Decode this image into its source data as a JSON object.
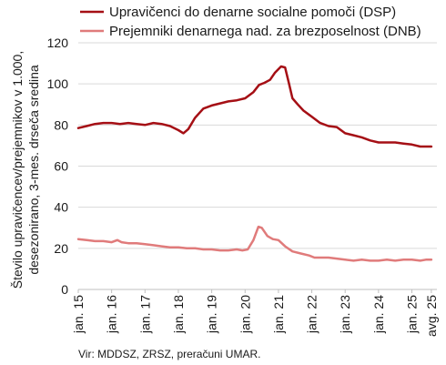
{
  "source": "Vir: MDDSZ, ZRSZ, preračuni UMAR.",
  "chart_data": {
    "type": "line",
    "ylabel_lines": [
      "Število upravičencev/prejemnikov v 1.000,",
      "desezonirano, 3-mes. drseča sredina"
    ],
    "ylim": [
      0,
      120
    ],
    "yticks": [
      0,
      20,
      40,
      60,
      80,
      100,
      120
    ],
    "xlim": [
      2015.0,
      2025.75
    ],
    "x_tick_labels": [
      {
        "x": 2015,
        "label": "jan. 15"
      },
      {
        "x": 2016,
        "label": "jan. 16"
      },
      {
        "x": 2017,
        "label": "jan. 17"
      },
      {
        "x": 2018,
        "label": "jan. 18"
      },
      {
        "x": 2019,
        "label": "jan. 19"
      },
      {
        "x": 2020,
        "label": "jan. 20"
      },
      {
        "x": 2021,
        "label": "jan. 21"
      },
      {
        "x": 2022,
        "label": "jan. 22"
      },
      {
        "x": 2023,
        "label": "jan. 23"
      },
      {
        "x": 2024,
        "label": "jan. 24"
      },
      {
        "x": 2025,
        "label": "jan. 25"
      },
      {
        "x": 2025.583,
        "label": "avg. 25"
      }
    ],
    "grid": "horizontal",
    "legend_position": "top",
    "series": [
      {
        "name": "Upravičenci do denarne socialne pomoči (DSP)",
        "color": "#a50f15",
        "points": [
          [
            2015.0,
            78.5
          ],
          [
            2015.25,
            79.5
          ],
          [
            2015.5,
            80.5
          ],
          [
            2015.75,
            81.0
          ],
          [
            2016.0,
            81.0
          ],
          [
            2016.25,
            80.5
          ],
          [
            2016.5,
            81.0
          ],
          [
            2016.75,
            80.5
          ],
          [
            2017.0,
            80.0
          ],
          [
            2017.25,
            81.0
          ],
          [
            2017.5,
            80.5
          ],
          [
            2017.75,
            79.5
          ],
          [
            2018.0,
            77.5
          ],
          [
            2018.15,
            76.0
          ],
          [
            2018.3,
            78.0
          ],
          [
            2018.5,
            83.5
          ],
          [
            2018.75,
            88.0
          ],
          [
            2019.0,
            89.5
          ],
          [
            2019.25,
            90.5
          ],
          [
            2019.5,
            91.5
          ],
          [
            2019.75,
            92.0
          ],
          [
            2020.0,
            93.0
          ],
          [
            2020.25,
            96.0
          ],
          [
            2020.42,
            99.5
          ],
          [
            2020.58,
            100.5
          ],
          [
            2020.75,
            102.0
          ],
          [
            2020.9,
            105.5
          ],
          [
            2021.08,
            108.5
          ],
          [
            2021.2,
            108.0
          ],
          [
            2021.32,
            100.0
          ],
          [
            2021.42,
            93.0
          ],
          [
            2021.58,
            90.0
          ],
          [
            2021.75,
            87.0
          ],
          [
            2022.0,
            84.0
          ],
          [
            2022.25,
            81.0
          ],
          [
            2022.5,
            79.5
          ],
          [
            2022.75,
            79.0
          ],
          [
            2023.0,
            76.0
          ],
          [
            2023.25,
            75.0
          ],
          [
            2023.5,
            74.0
          ],
          [
            2023.75,
            72.5
          ],
          [
            2024.0,
            71.5
          ],
          [
            2024.25,
            71.5
          ],
          [
            2024.5,
            71.5
          ],
          [
            2024.75,
            71.0
          ],
          [
            2025.0,
            70.5
          ],
          [
            2025.25,
            69.5
          ],
          [
            2025.583,
            69.5
          ]
        ]
      },
      {
        "name": "Prejemniki denarnega nad. za brezposelnost (DNB)",
        "color": "#e07b7b",
        "points": [
          [
            2015.0,
            24.5
          ],
          [
            2015.25,
            24.0
          ],
          [
            2015.5,
            23.5
          ],
          [
            2015.75,
            23.5
          ],
          [
            2016.0,
            23.0
          ],
          [
            2016.17,
            24.0
          ],
          [
            2016.3,
            23.0
          ],
          [
            2016.5,
            22.5
          ],
          [
            2016.75,
            22.5
          ],
          [
            2017.0,
            22.0
          ],
          [
            2017.25,
            21.5
          ],
          [
            2017.5,
            21.0
          ],
          [
            2017.75,
            20.5
          ],
          [
            2018.0,
            20.5
          ],
          [
            2018.25,
            20.0
          ],
          [
            2018.5,
            20.0
          ],
          [
            2018.75,
            19.5
          ],
          [
            2019.0,
            19.5
          ],
          [
            2019.25,
            19.0
          ],
          [
            2019.5,
            19.0
          ],
          [
            2019.75,
            19.5
          ],
          [
            2019.92,
            19.0
          ],
          [
            2020.08,
            19.5
          ],
          [
            2020.25,
            24.0
          ],
          [
            2020.4,
            30.5
          ],
          [
            2020.5,
            30.0
          ],
          [
            2020.67,
            26.0
          ],
          [
            2020.83,
            24.5
          ],
          [
            2021.0,
            24.0
          ],
          [
            2021.2,
            21.0
          ],
          [
            2021.42,
            18.5
          ],
          [
            2021.67,
            17.5
          ],
          [
            2021.92,
            16.5
          ],
          [
            2022.08,
            15.5
          ],
          [
            2022.25,
            15.5
          ],
          [
            2022.5,
            15.5
          ],
          [
            2022.75,
            15.0
          ],
          [
            2023.0,
            14.5
          ],
          [
            2023.25,
            14.0
          ],
          [
            2023.5,
            14.5
          ],
          [
            2023.75,
            14.0
          ],
          [
            2024.0,
            14.0
          ],
          [
            2024.25,
            14.5
          ],
          [
            2024.5,
            14.0
          ],
          [
            2024.75,
            14.5
          ],
          [
            2025.0,
            14.5
          ],
          [
            2025.25,
            14.0
          ],
          [
            2025.42,
            14.5
          ],
          [
            2025.583,
            14.5
          ]
        ]
      }
    ]
  }
}
